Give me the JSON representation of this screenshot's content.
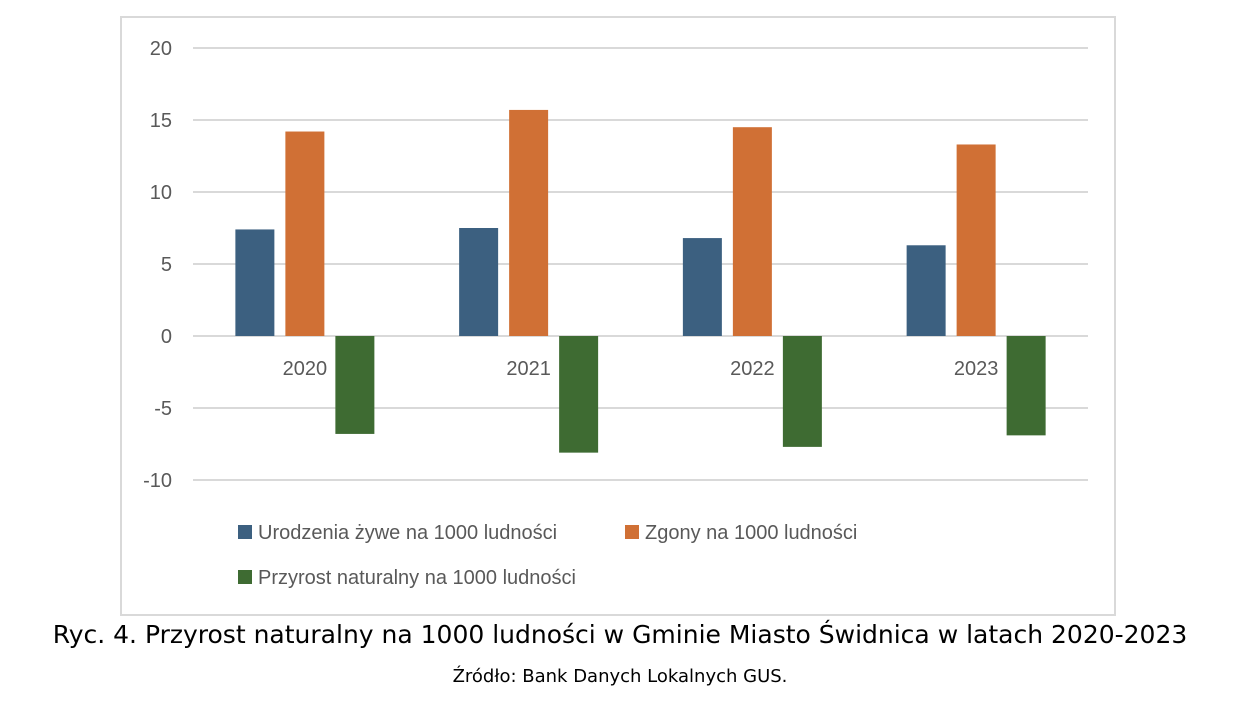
{
  "chart_data": {
    "type": "bar",
    "categories": [
      "2020",
      "2021",
      "2022",
      "2023"
    ],
    "series": [
      {
        "name": "Urodzenia żywe na 1000 ludności",
        "color": "#3c6080",
        "values": [
          7.4,
          7.5,
          6.8,
          6.3
        ]
      },
      {
        "name": "Zgony na 1000 ludności",
        "color": "#d07035",
        "values": [
          14.2,
          15.7,
          14.5,
          13.3
        ]
      },
      {
        "name": "Przyrost naturalny na 1000 ludności",
        "color": "#3e6b32",
        "values": [
          -6.8,
          -8.1,
          -7.7,
          -6.9
        ]
      }
    ],
    "ylim": [
      -10,
      20
    ],
    "yticks": [
      20,
      15,
      10,
      5,
      0,
      -5,
      -10
    ],
    "grid": true,
    "legend": "bottom"
  },
  "caption": "Ryc. 4. Przyrost naturalny na 1000 ludności w Gminie Miasto Świdnica w latach 2020-2023",
  "source": "Źródło: Bank Danych Lokalnych GUS."
}
